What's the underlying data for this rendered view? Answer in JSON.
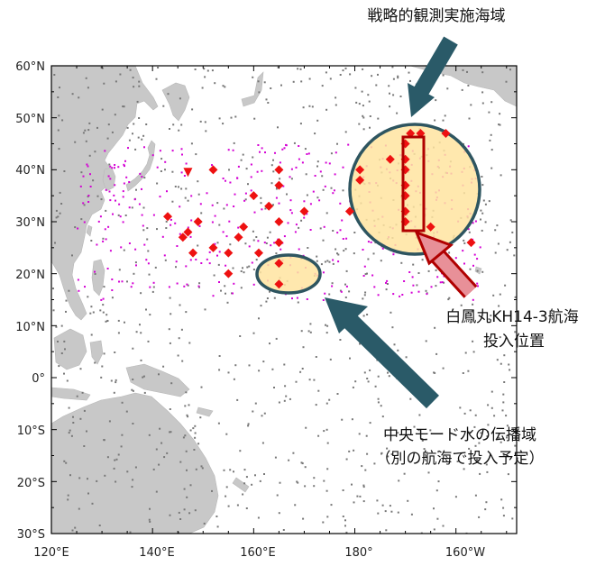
{
  "map": {
    "lat_labels": [
      "60°N",
      "50°N",
      "40°N",
      "30°N",
      "20°N",
      "10°N",
      "0°",
      "10°S",
      "20°S",
      "30°S"
    ],
    "lon_labels": [
      "120°E",
      "140°E",
      "160°E",
      "180°",
      "160°W"
    ],
    "extent": {
      "lon_min": 120,
      "lon_max": 212,
      "lat_min": -30,
      "lat_max": 60
    }
  },
  "annotations": {
    "strategic_area": "戦略的観測実施海域",
    "cruise_line1": "白鳳丸KH14-3航海",
    "cruise_line2": "投入位置",
    "mode_line1": "中央モード水の伝播域",
    "mode_line2": "（別の航海で投入予定）"
  },
  "colors": {
    "land": "#c8c8c8",
    "ocean": "#ffffff",
    "float_marker": "#ee1111",
    "highlight_fill": "#ffe4a0",
    "highlight_stroke": "#2e5560",
    "arrow_teal": "#2a5a68",
    "arrow_pink": "#e89098",
    "box_red": "#b00000"
  },
  "markers": {
    "red_diamonds": [
      [
        152,
        40
      ],
      [
        165,
        40
      ],
      [
        165,
        37
      ],
      [
        160,
        35
      ],
      [
        163,
        33
      ],
      [
        170,
        32
      ],
      [
        143,
        31
      ],
      [
        149,
        30
      ],
      [
        158,
        29
      ],
      [
        165,
        30
      ],
      [
        147,
        28
      ],
      [
        146,
        27
      ],
      [
        157,
        27
      ],
      [
        152,
        25
      ],
      [
        165,
        26
      ],
      [
        148,
        24
      ],
      [
        155,
        24
      ],
      [
        161,
        24
      ],
      [
        165,
        22
      ],
      [
        155,
        20
      ],
      [
        165,
        18
      ],
      [
        179,
        32
      ],
      [
        181,
        40
      ],
      [
        181,
        38
      ],
      [
        187,
        42
      ],
      [
        191,
        47
      ],
      [
        193,
        47
      ],
      [
        198,
        47
      ],
      [
        195,
        29
      ],
      [
        203,
        26
      ],
      [
        190,
        45
      ],
      [
        190,
        42
      ],
      [
        190,
        40
      ],
      [
        190,
        37
      ],
      [
        190,
        35
      ],
      [
        190,
        32
      ],
      [
        190,
        30
      ]
    ],
    "red_triangle": [
      [
        147,
        39.5
      ]
    ]
  }
}
